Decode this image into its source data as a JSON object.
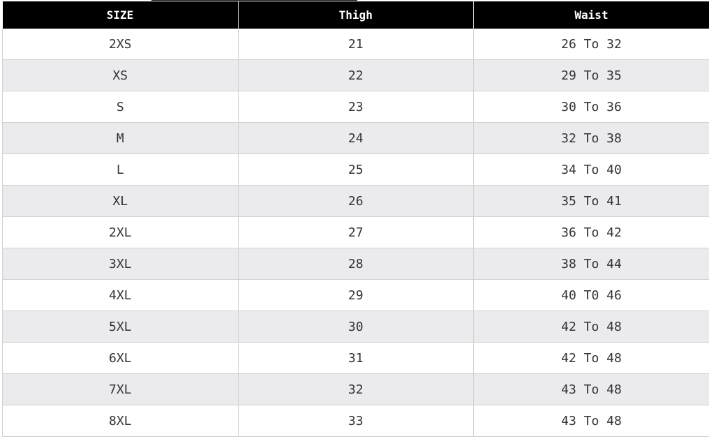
{
  "table": {
    "headers": [
      "SIZE",
      "Thigh",
      "Waist"
    ],
    "rows": [
      [
        "2XS",
        "21",
        "26 To 32"
      ],
      [
        "XS",
        "22",
        "29 To 35"
      ],
      [
        "S",
        "23",
        "30 To 36"
      ],
      [
        "M",
        "24",
        "32 To 38"
      ],
      [
        "L",
        "25",
        "34 To 40"
      ],
      [
        "XL",
        "26",
        "35 To 41"
      ],
      [
        "2XL",
        "27",
        "36 To 42"
      ],
      [
        "3XL",
        "28",
        "38 To 44"
      ],
      [
        "4XL",
        "29",
        "40 T0 46"
      ],
      [
        "5XL",
        "30",
        "42 To 48"
      ],
      [
        "6XL",
        "31",
        "42 To 48"
      ],
      [
        "7XL",
        "32",
        "43 To 48"
      ],
      [
        "8XL",
        "33",
        "43 To 48"
      ]
    ]
  }
}
